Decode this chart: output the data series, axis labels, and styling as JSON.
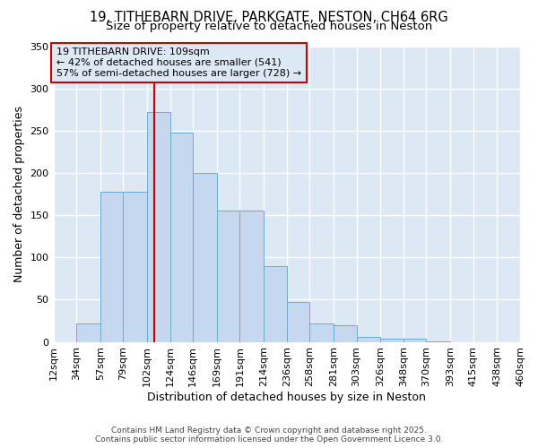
{
  "title_line1": "19, TITHEBARN DRIVE, PARKGATE, NESTON, CH64 6RG",
  "title_line2": "Size of property relative to detached houses in Neston",
  "xlabel": "Distribution of detached houses by size in Neston",
  "ylabel": "Number of detached properties",
  "bin_edges": [
    12,
    34,
    57,
    79,
    102,
    124,
    146,
    169,
    191,
    214,
    236,
    258,
    281,
    303,
    326,
    348,
    370,
    393,
    415,
    438,
    460
  ],
  "bar_heights": [
    0,
    22,
    178,
    178,
    272,
    248,
    200,
    155,
    155,
    90,
    47,
    22,
    20,
    6,
    4,
    4,
    1,
    0,
    0,
    0
  ],
  "bar_color": "#c5d8f0",
  "bar_edge_color": "#6aaad4",
  "bg_color": "#dde8f5",
  "plot_bg_color": "#dde8f5",
  "fig_bg_color": "#ffffff",
  "grid_color": "#ffffff",
  "vline_x": 109,
  "vline_color": "#cc0000",
  "annotation_text": "19 TITHEBARN DRIVE: 109sqm\n← 42% of detached houses are smaller (541)\n57% of semi-detached houses are larger (728) →",
  "annotation_box_color": "#cc0000",
  "ylim": [
    0,
    350
  ],
  "yticks": [
    0,
    50,
    100,
    150,
    200,
    250,
    300,
    350
  ],
  "xtick_labels": [
    "12sqm",
    "34sqm",
    "57sqm",
    "79sqm",
    "102sqm",
    "124sqm",
    "146sqm",
    "169sqm",
    "191sqm",
    "214sqm",
    "236sqm",
    "258sqm",
    "281sqm",
    "303sqm",
    "326sqm",
    "348sqm",
    "370sqm",
    "393sqm",
    "415sqm",
    "438sqm",
    "460sqm"
  ],
  "footer_text": "Contains HM Land Registry data © Crown copyright and database right 2025.\nContains public sector information licensed under the Open Government Licence 3.0.",
  "title_fontsize": 10.5,
  "subtitle_fontsize": 9.5,
  "axis_label_fontsize": 9,
  "tick_fontsize": 8,
  "annotation_fontsize": 8,
  "footer_fontsize": 6.5
}
